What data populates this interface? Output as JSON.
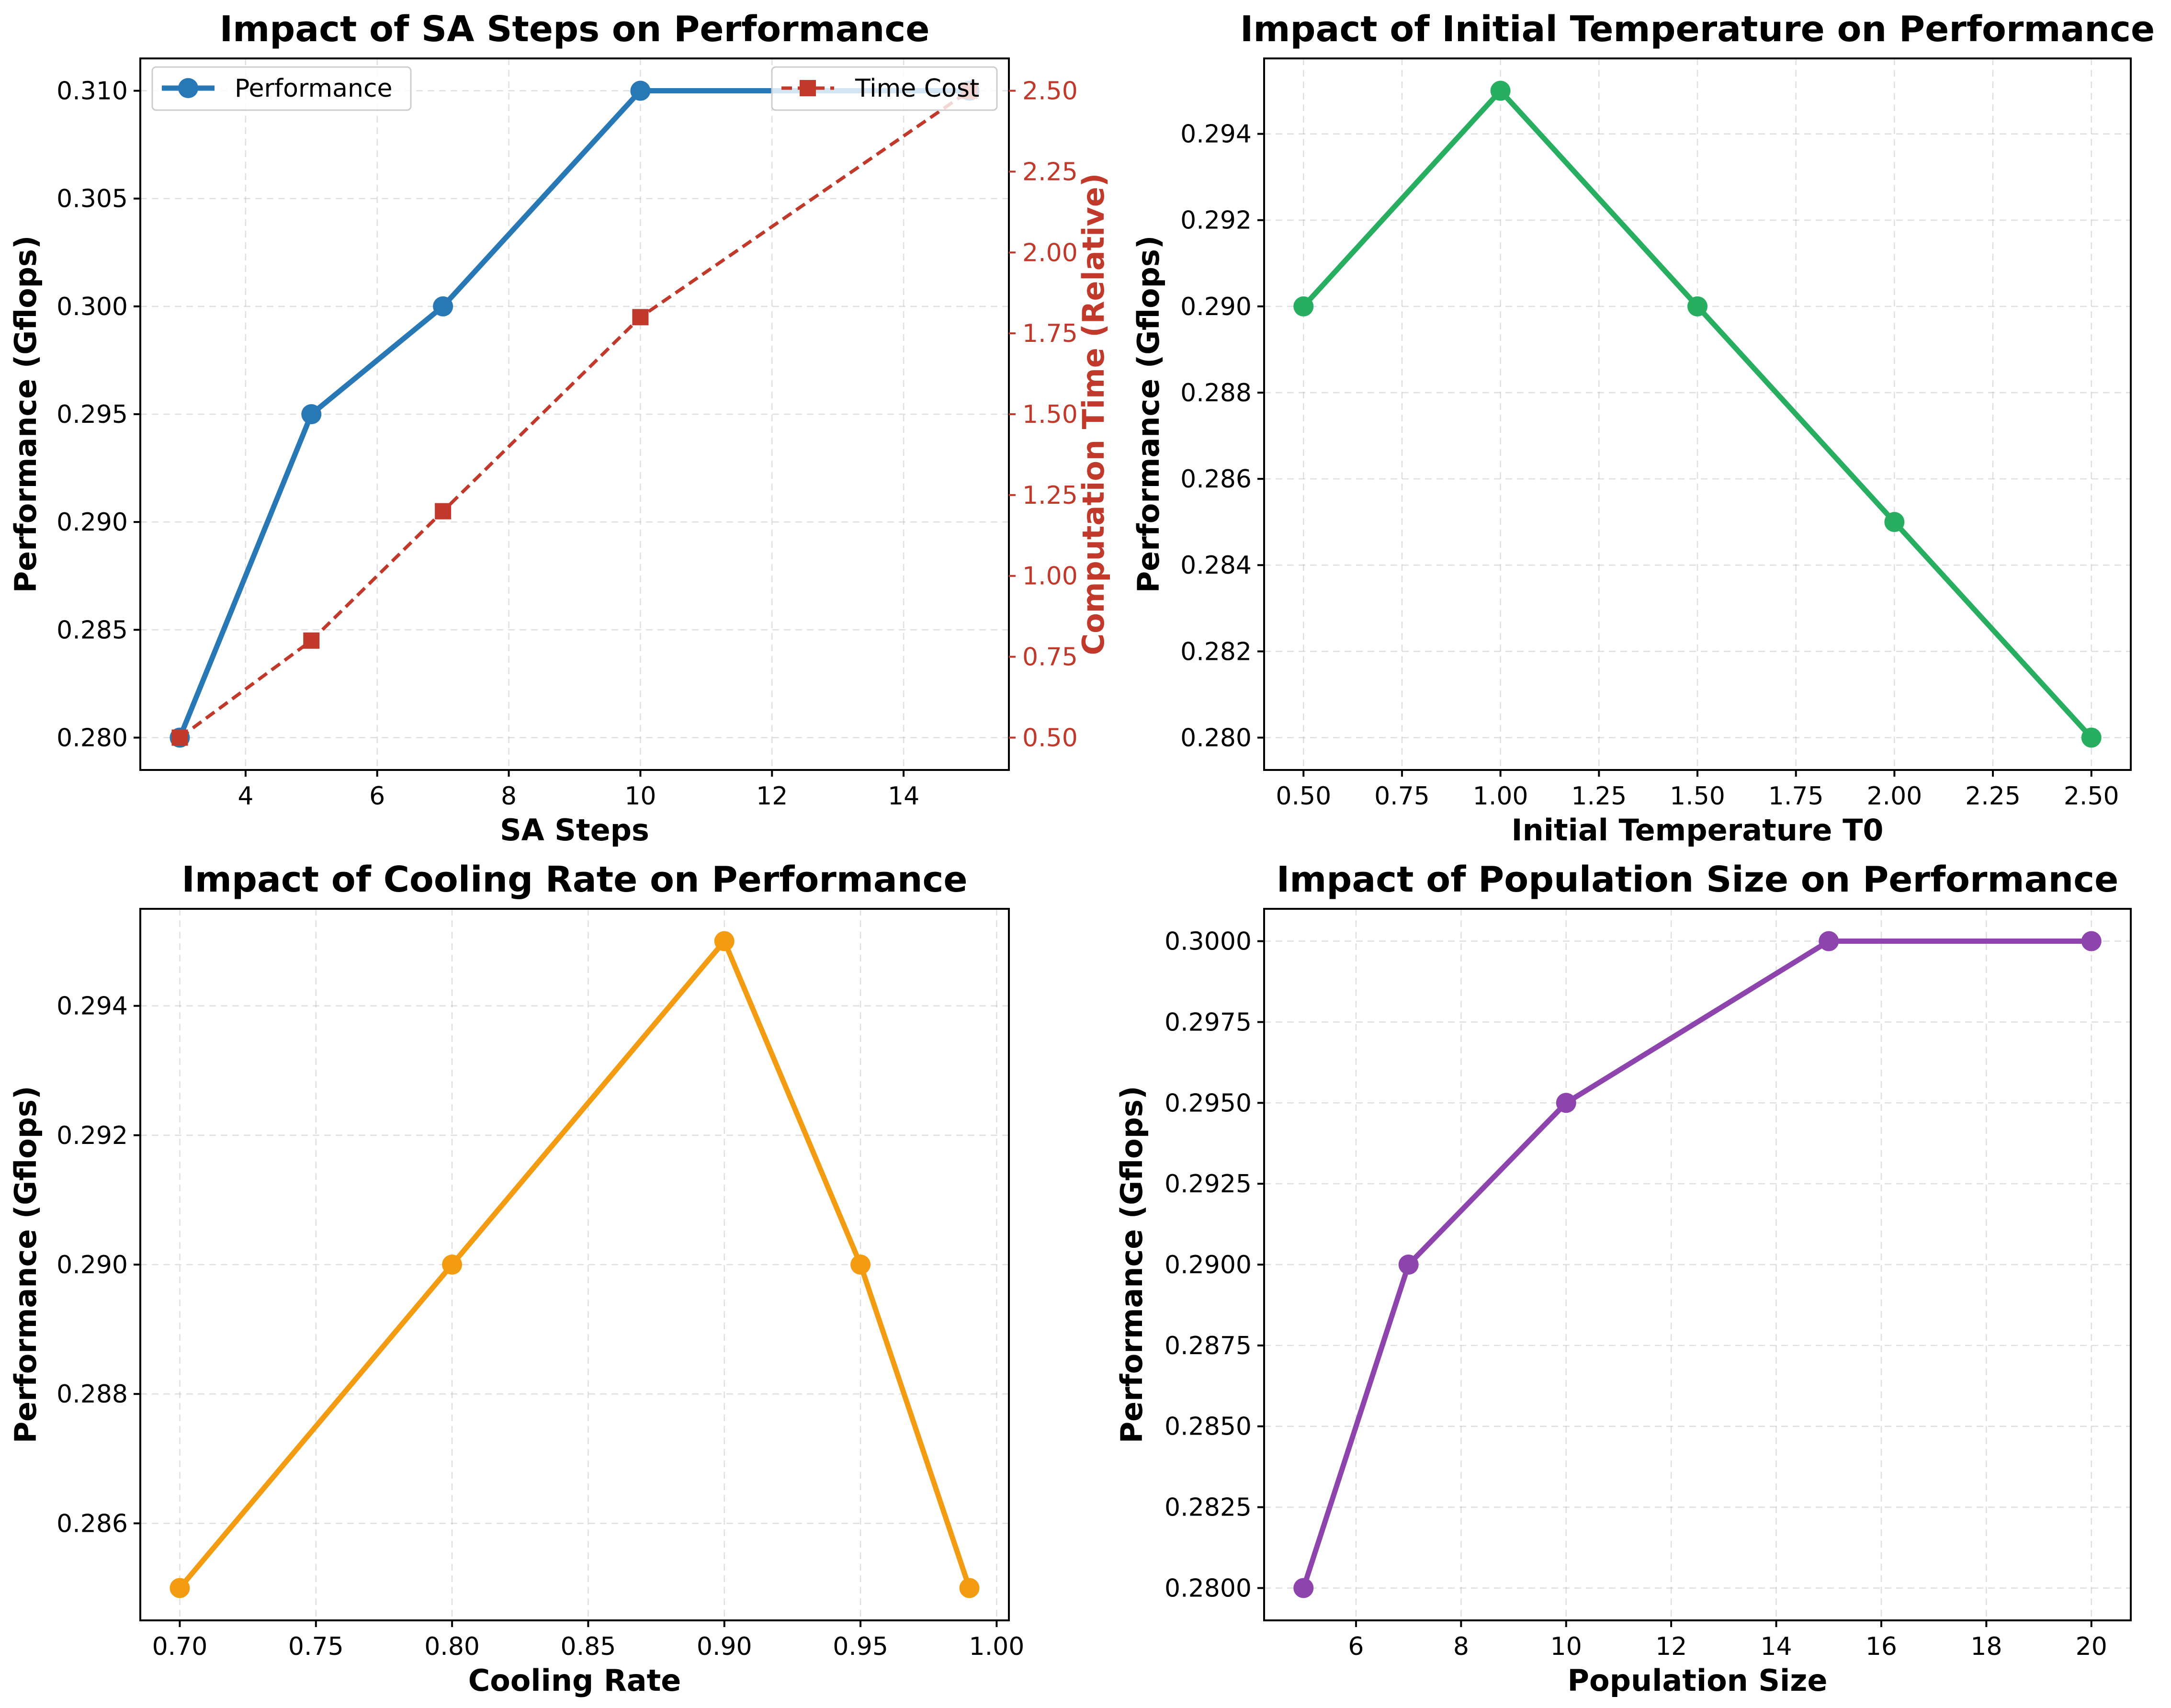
{
  "chart_data": [
    {
      "type": "line",
      "title": "Impact of SA Steps on Performance",
      "xlabel": "SA Steps",
      "ylabel": "Performance (Gflops)",
      "y2label": "Computation Time (Relative)",
      "x": [
        3,
        5,
        7,
        10,
        15
      ],
      "xlim": [
        2.4,
        15.6
      ],
      "ylim": [
        0.2785,
        0.3115
      ],
      "y2lim": [
        0.4,
        2.6
      ],
      "xticks": [
        4,
        6,
        8,
        10,
        12,
        14
      ],
      "xticklabels": [
        "4",
        "6",
        "8",
        "10",
        "12",
        "14"
      ],
      "yticks": [
        0.28,
        0.285,
        0.29,
        0.295,
        0.3,
        0.305,
        0.31
      ],
      "yticklabels": [
        "0.280",
        "0.285",
        "0.290",
        "0.295",
        "0.300",
        "0.305",
        "0.310"
      ],
      "y2ticks": [
        0.5,
        0.75,
        1.0,
        1.25,
        1.5,
        1.75,
        2.0,
        2.25,
        2.5
      ],
      "y2ticklabels": [
        "0.50",
        "0.75",
        "1.00",
        "1.25",
        "1.50",
        "1.75",
        "2.00",
        "2.25",
        "2.50"
      ],
      "series": [
        {
          "name": "Performance",
          "axis": "left",
          "values": [
            0.28,
            0.295,
            0.3,
            0.31,
            0.31
          ],
          "color": "#2878b5",
          "marker": "circle",
          "line": "solid"
        },
        {
          "name": "Time Cost",
          "axis": "right",
          "values": [
            0.5,
            0.8,
            1.2,
            1.8,
            2.5
          ],
          "color": "#c0392b",
          "marker": "square",
          "line": "dashed"
        }
      ],
      "legend": [
        "upper-left",
        "upper-right"
      ],
      "grid": true
    },
    {
      "type": "line",
      "title": "Impact of Initial Temperature on Performance",
      "xlabel": "Initial Temperature T0",
      "ylabel": "Performance (Gflops)",
      "x": [
        0.5,
        1.0,
        1.5,
        2.0,
        2.5
      ],
      "xlim": [
        0.4,
        2.6
      ],
      "ylim": [
        0.27925,
        0.29575
      ],
      "xticks": [
        0.5,
        0.75,
        1.0,
        1.25,
        1.5,
        1.75,
        2.0,
        2.25,
        2.5
      ],
      "xticklabels": [
        "0.50",
        "0.75",
        "1.00",
        "1.25",
        "1.50",
        "1.75",
        "2.00",
        "2.25",
        "2.50"
      ],
      "yticks": [
        0.28,
        0.282,
        0.284,
        0.286,
        0.288,
        0.29,
        0.292,
        0.294
      ],
      "yticklabels": [
        "0.280",
        "0.282",
        "0.284",
        "0.286",
        "0.288",
        "0.290",
        "0.292",
        "0.294"
      ],
      "series": [
        {
          "values": [
            0.29,
            0.295,
            0.29,
            0.285,
            0.28
          ],
          "color": "#27ae60",
          "marker": "circle",
          "line": "solid"
        }
      ],
      "grid": true
    },
    {
      "type": "line",
      "title": "Impact of Cooling Rate on Performance",
      "xlabel": "Cooling Rate",
      "ylabel": "Performance (Gflops)",
      "x": [
        0.7,
        0.8,
        0.9,
        0.95,
        0.99
      ],
      "xlim": [
        0.6855,
        1.0045
      ],
      "ylim": [
        0.2845,
        0.2955
      ],
      "xticks": [
        0.7,
        0.75,
        0.8,
        0.85,
        0.9,
        0.95,
        1.0
      ],
      "xticklabels": [
        "0.70",
        "0.75",
        "0.80",
        "0.85",
        "0.90",
        "0.95",
        "1.00"
      ],
      "yticks": [
        0.286,
        0.288,
        0.29,
        0.292,
        0.294
      ],
      "yticklabels": [
        "0.286",
        "0.288",
        "0.290",
        "0.292",
        "0.294"
      ],
      "series": [
        {
          "values": [
            0.285,
            0.29,
            0.295,
            0.29,
            0.285
          ],
          "color": "#f39c12",
          "marker": "circle",
          "line": "solid"
        }
      ],
      "grid": true
    },
    {
      "type": "line",
      "title": "Impact of Population Size on Performance",
      "xlabel": "Population Size",
      "ylabel": "Performance (Gflops)",
      "x": [
        5,
        7,
        10,
        15,
        20
      ],
      "xlim": [
        4.25,
        20.75
      ],
      "ylim": [
        0.279,
        0.301
      ],
      "xticks": [
        6,
        8,
        10,
        12,
        14,
        16,
        18,
        20
      ],
      "xticklabels": [
        "6",
        "8",
        "10",
        "12",
        "14",
        "16",
        "18",
        "20"
      ],
      "yticks": [
        0.28,
        0.2825,
        0.285,
        0.2875,
        0.29,
        0.2925,
        0.295,
        0.2975,
        0.3
      ],
      "yticklabels": [
        "0.2800",
        "0.2825",
        "0.2850",
        "0.2875",
        "0.2900",
        "0.2925",
        "0.2950",
        "0.2975",
        "0.3000"
      ],
      "series": [
        {
          "values": [
            0.28,
            0.29,
            0.295,
            0.3,
            0.3
          ],
          "color": "#8e44ad",
          "marker": "circle",
          "line": "solid"
        }
      ],
      "grid": true
    }
  ]
}
